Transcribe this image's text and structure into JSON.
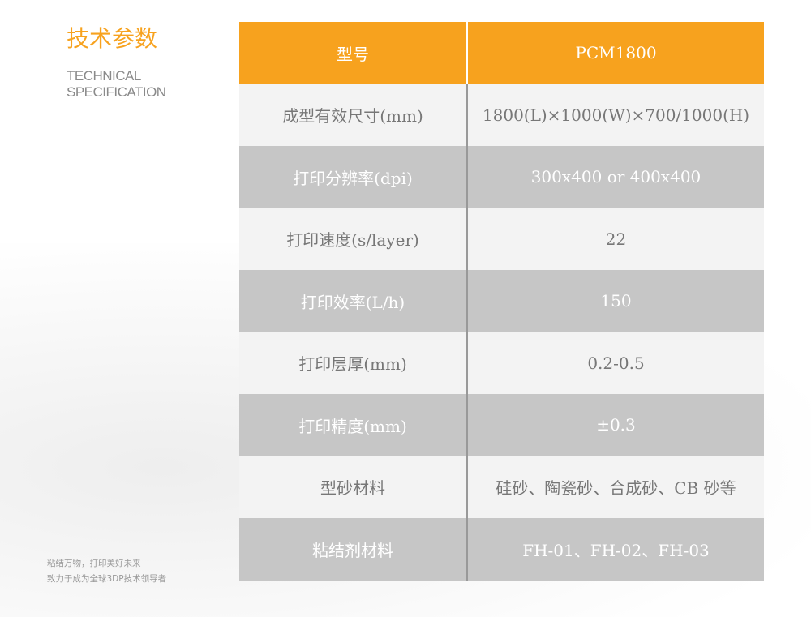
{
  "title": "技术参数",
  "subtitle": [
    "TECHNICAL",
    "SPECIFICATION"
  ],
  "slogan": [
    "粘结万物，打印美好未来",
    "致力于成为全球3DP技术领导者"
  ],
  "colors": {
    "accent": "#f7a21e",
    "row_light": "#f3f3f3",
    "row_dark": "#c6c6c6"
  },
  "table": {
    "header": [
      "型号",
      "PCM1800"
    ],
    "rows": [
      [
        "成型有效尺寸(mm)",
        "1800(L)×1000(W)×700/1000(H)"
      ],
      [
        "打印分辨率(dpi)",
        "300x400 or 400x400"
      ],
      [
        "打印速度(s/layer)",
        "22"
      ],
      [
        "打印效率(L/h)",
        "150"
      ],
      [
        "打印层厚(mm)",
        "0.2-0.5"
      ],
      [
        "打印精度(mm)",
        "±0.3"
      ],
      [
        "型砂材料",
        "硅砂、陶瓷砂、合成砂、CB 砂等"
      ],
      [
        "粘结剂材料",
        "FH-01、FH-02、FH-03"
      ]
    ]
  }
}
